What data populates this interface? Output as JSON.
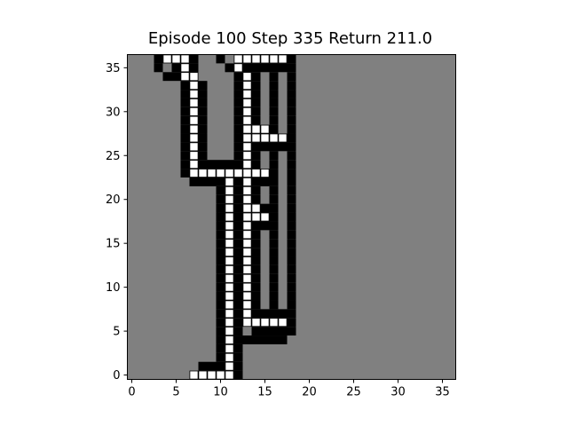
{
  "title": "Episode 100 Step 335 Return 211.0",
  "colors": {
    "background": "#808080",
    "wall": "#000000",
    "visited": "#ffffff",
    "cell_border": "#000000",
    "axes": "#000000"
  },
  "chart_data": {
    "type": "heatmap",
    "title": "Episode 100 Step 335 Return 211.0",
    "xlim": [
      -0.5,
      36.5
    ],
    "ylim": [
      -0.5,
      36.5
    ],
    "xticks": [
      0,
      5,
      10,
      15,
      20,
      25,
      30,
      35
    ],
    "yticks": [
      0,
      5,
      10,
      15,
      20,
      25,
      30,
      35
    ],
    "grid_size": 37,
    "legend": [],
    "white_rows": [
      {
        "y": 36,
        "x": [
          4,
          5,
          6,
          12,
          13,
          14,
          15,
          16,
          17
        ]
      },
      {
        "y": 35,
        "x": [
          6,
          12
        ]
      },
      {
        "y": 34,
        "x": [
          6,
          7,
          13
        ]
      },
      {
        "y": 33,
        "x": [
          7,
          13
        ]
      },
      {
        "y": 32,
        "x": [
          7,
          13
        ]
      },
      {
        "y": 31,
        "x": [
          7,
          13
        ]
      },
      {
        "y": 30,
        "x": [
          7,
          13
        ]
      },
      {
        "y": 29,
        "x": [
          7,
          13
        ]
      },
      {
        "y": 28,
        "x": [
          7,
          13,
          14,
          15
        ]
      },
      {
        "y": 27,
        "x": [
          7,
          13,
          14,
          15,
          16,
          17
        ]
      },
      {
        "y": 26,
        "x": [
          7,
          13
        ]
      },
      {
        "y": 25,
        "x": [
          7,
          13
        ]
      },
      {
        "y": 24,
        "x": [
          7,
          13
        ]
      },
      {
        "y": 23,
        "x": [
          7,
          8,
          9,
          10,
          11,
          12,
          13,
          14,
          15
        ]
      },
      {
        "y": 22,
        "x": [
          11,
          13
        ]
      },
      {
        "y": 21,
        "x": [
          11,
          13
        ]
      },
      {
        "y": 20,
        "x": [
          11,
          13
        ]
      },
      {
        "y": 19,
        "x": [
          11,
          13,
          14
        ]
      },
      {
        "y": 18,
        "x": [
          11,
          13,
          14,
          15
        ]
      },
      {
        "y": 17,
        "x": [
          11,
          13
        ]
      },
      {
        "y": 16,
        "x": [
          11,
          13
        ]
      },
      {
        "y": 15,
        "x": [
          11,
          13
        ]
      },
      {
        "y": 14,
        "x": [
          11,
          13
        ]
      },
      {
        "y": 13,
        "x": [
          11,
          13
        ]
      },
      {
        "y": 12,
        "x": [
          11,
          13
        ]
      },
      {
        "y": 11,
        "x": [
          11,
          13
        ]
      },
      {
        "y": 10,
        "x": [
          11,
          13
        ]
      },
      {
        "y": 9,
        "x": [
          11,
          13
        ]
      },
      {
        "y": 8,
        "x": [
          11,
          13
        ]
      },
      {
        "y": 7,
        "x": [
          11,
          13
        ]
      },
      {
        "y": 6,
        "x": [
          11,
          13,
          14,
          15,
          16,
          17
        ]
      },
      {
        "y": 5,
        "x": [
          11
        ]
      },
      {
        "y": 4,
        "x": [
          11
        ]
      },
      {
        "y": 3,
        "x": [
          11
        ]
      },
      {
        "y": 2,
        "x": [
          11
        ]
      },
      {
        "y": 1,
        "x": [
          11
        ]
      },
      {
        "y": 0,
        "x": [
          7,
          8,
          9,
          10,
          11
        ]
      }
    ],
    "black_rows": [
      {
        "y": 36,
        "x": [
          3,
          7,
          10,
          18
        ]
      },
      {
        "y": 35,
        "x": [
          3,
          5,
          7,
          11,
          13,
          14,
          15,
          16,
          17,
          18
        ]
      },
      {
        "y": 34,
        "x": [
          4,
          5,
          7,
          12,
          14,
          16,
          18
        ]
      },
      {
        "y": 33,
        "x": [
          6,
          8,
          12,
          14,
          16,
          18
        ]
      },
      {
        "y": 32,
        "x": [
          6,
          8,
          12,
          14,
          16,
          18
        ]
      },
      {
        "y": 31,
        "x": [
          6,
          8,
          12,
          14,
          16,
          18
        ]
      },
      {
        "y": 30,
        "x": [
          6,
          8,
          12,
          14,
          16,
          18
        ]
      },
      {
        "y": 29,
        "x": [
          6,
          8,
          12,
          14,
          16,
          18
        ]
      },
      {
        "y": 28,
        "x": [
          6,
          8,
          12,
          16,
          18
        ]
      },
      {
        "y": 27,
        "x": [
          6,
          8,
          12,
          18
        ]
      },
      {
        "y": 26,
        "x": [
          6,
          8,
          12,
          14,
          15,
          16,
          17,
          18
        ]
      },
      {
        "y": 25,
        "x": [
          6,
          8,
          12,
          14,
          16,
          18
        ]
      },
      {
        "y": 24,
        "x": [
          6,
          8,
          9,
          10,
          11,
          12,
          14,
          16,
          18
        ]
      },
      {
        "y": 23,
        "x": [
          6,
          16,
          18
        ]
      },
      {
        "y": 22,
        "x": [
          7,
          8,
          9,
          10,
          12,
          14,
          15,
          16,
          18
        ]
      },
      {
        "y": 21,
        "x": [
          10,
          12,
          14,
          16,
          18
        ]
      },
      {
        "y": 20,
        "x": [
          10,
          12,
          14,
          16,
          18
        ]
      },
      {
        "y": 19,
        "x": [
          10,
          12,
          15,
          16,
          18
        ]
      },
      {
        "y": 18,
        "x": [
          10,
          12,
          16,
          18
        ]
      },
      {
        "y": 17,
        "x": [
          10,
          12,
          14,
          15,
          16,
          18
        ]
      },
      {
        "y": 16,
        "x": [
          10,
          12,
          14,
          16,
          18
        ]
      },
      {
        "y": 15,
        "x": [
          10,
          12,
          14,
          16,
          18
        ]
      },
      {
        "y": 14,
        "x": [
          10,
          12,
          14,
          16,
          18
        ]
      },
      {
        "y": 13,
        "x": [
          10,
          12,
          14,
          16,
          18
        ]
      },
      {
        "y": 12,
        "x": [
          10,
          12,
          14,
          16,
          18
        ]
      },
      {
        "y": 11,
        "x": [
          10,
          12,
          14,
          16,
          18
        ]
      },
      {
        "y": 10,
        "x": [
          10,
          12,
          14,
          16,
          18
        ]
      },
      {
        "y": 9,
        "x": [
          10,
          12,
          14,
          16,
          18
        ]
      },
      {
        "y": 8,
        "x": [
          10,
          12,
          14,
          16,
          18
        ]
      },
      {
        "y": 7,
        "x": [
          10,
          12,
          14,
          15,
          16,
          17,
          18
        ]
      },
      {
        "y": 6,
        "x": [
          10,
          12,
          18
        ]
      },
      {
        "y": 5,
        "x": [
          10,
          12,
          14,
          15,
          16,
          17,
          18
        ]
      },
      {
        "y": 4,
        "x": [
          10,
          12,
          13,
          14,
          15,
          16,
          17
        ]
      },
      {
        "y": 3,
        "x": [
          10,
          12
        ]
      },
      {
        "y": 2,
        "x": [
          10,
          12
        ]
      },
      {
        "y": 1,
        "x": [
          8,
          9,
          10,
          12
        ]
      },
      {
        "y": 0,
        "x": [
          12
        ]
      }
    ]
  }
}
